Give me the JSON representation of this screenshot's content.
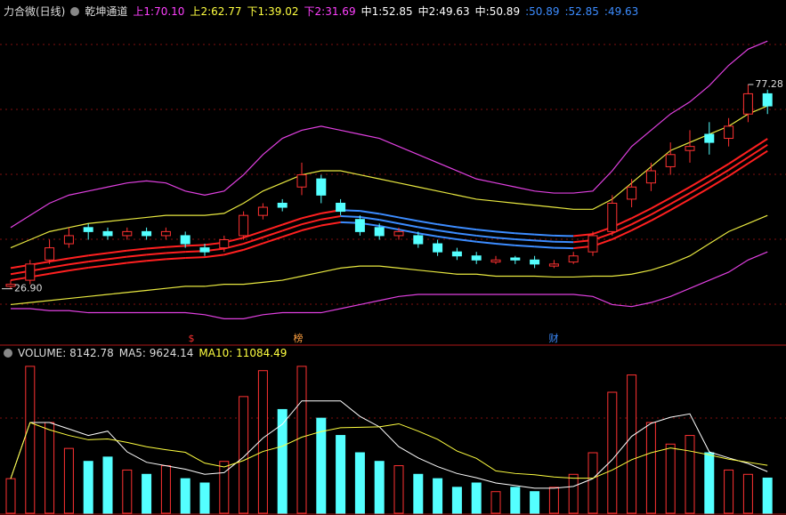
{
  "header": {
    "title": "力合微(日线)",
    "indicator": "乾坤通道",
    "items": [
      {
        "name": "上1:",
        "text": "70.10",
        "color": "#ff40ff"
      },
      {
        "name": "上2:",
        "text": "62.77",
        "color": "#ffff40"
      },
      {
        "name": "下1:",
        "text": "39.02",
        "color": "#ffff40"
      },
      {
        "name": "下2:",
        "text": "31.69",
        "color": "#ff40ff"
      },
      {
        "name": "中1:",
        "text": "52.85",
        "color": "#ffffff"
      },
      {
        "name": "中2:",
        "text": "49.63",
        "color": "#ffffff"
      },
      {
        "name": "中:",
        "text": "50.89",
        "color": "#ffffff"
      },
      {
        "name": ":",
        "text": "50.89",
        "color": "#3c8cff"
      },
      {
        "name": ":",
        "text": "52.85",
        "color": "#3c8cff"
      },
      {
        "name": ":",
        "text": "49.63",
        "color": "#3c8cff"
      }
    ]
  },
  "chart_data": [
    {
      "type": "candlestick",
      "ylim": [
        13,
        93.3
      ],
      "up_color": "#ff3232",
      "down_color": "#54ffff",
      "open": [
        27.5,
        29,
        34,
        38,
        42,
        41,
        40,
        41,
        40,
        40,
        37,
        37,
        40,
        45,
        48,
        52,
        54,
        48,
        44,
        42,
        40,
        40,
        38,
        36,
        35,
        33.5,
        34.5,
        34,
        32.5,
        33.5,
        36,
        41,
        49,
        53,
        57,
        61,
        65,
        64,
        70,
        75
      ],
      "high": [
        29,
        34,
        39,
        42,
        43,
        42,
        42,
        42,
        42,
        41,
        38,
        40,
        46,
        48,
        49,
        58,
        55,
        49,
        45,
        43,
        42,
        41,
        39,
        37,
        36,
        35,
        35,
        35,
        34,
        36,
        41,
        50,
        54,
        58,
        63,
        66,
        68,
        69,
        77.28,
        76
      ],
      "low": [
        26.9,
        28,
        33,
        37,
        39,
        39,
        39,
        39,
        39,
        37,
        35,
        36,
        39,
        44,
        46,
        50,
        48,
        45,
        40,
        39,
        39,
        37,
        35,
        34,
        33,
        33,
        33,
        32,
        32,
        33,
        35,
        40,
        47,
        51,
        55,
        58,
        60,
        62,
        68,
        70
      ],
      "close": [
        28,
        33,
        37,
        40,
        41,
        40,
        41,
        40,
        41,
        38,
        36,
        39,
        45,
        47,
        47,
        55,
        50,
        46,
        41,
        40,
        41,
        38,
        36,
        35,
        34,
        34,
        34,
        33,
        33,
        35,
        40,
        48,
        52,
        56,
        60,
        62,
        63,
        67,
        75,
        72
      ],
      "lines": [
        {
          "color": "#e040e0",
          "values": [
            42,
            45,
            48,
            50,
            51,
            52,
            53,
            53.5,
            53,
            51,
            50,
            51,
            55,
            60,
            64,
            66,
            67,
            66,
            65,
            64,
            62,
            60,
            58,
            56,
            54,
            53,
            52,
            51,
            50.5,
            50.5,
            51,
            56,
            62,
            66,
            70,
            73,
            77,
            82,
            86,
            88
          ]
        },
        {
          "color": "#e8e840",
          "values": [
            37,
            39,
            41,
            42,
            43,
            43.5,
            44,
            44.5,
            45,
            45,
            45,
            45.5,
            48,
            51,
            53,
            55,
            56,
            56,
            55,
            54,
            53,
            52,
            51,
            50,
            49,
            48.5,
            48,
            47.5,
            47,
            46.5,
            46.5,
            49,
            53,
            57,
            61,
            63,
            65,
            67,
            70,
            72
          ]
        },
        {
          "slope_colors": [
            "#ff2020",
            "#3c8cff"
          ],
          "values": [
            32,
            32.8,
            33.6,
            34.4,
            35.1,
            35.7,
            36.3,
            36.8,
            37.2,
            37.5,
            37.7,
            38.3,
            39.5,
            41.1,
            42.7,
            44.3,
            45.5,
            46.3,
            46.1,
            45.4,
            44.5,
            43.6,
            42.8,
            42.1,
            41.5,
            41,
            40.6,
            40.3,
            40,
            39.9,
            40.4,
            42.1,
            44.3,
            46.7,
            49.3,
            52,
            54.8,
            57.7,
            60.8,
            63.9
          ]
        },
        {
          "slope_colors": [
            "#ff2020",
            "#3c8cff"
          ],
          "values": [
            30.5,
            31.3,
            32.1,
            32.9,
            33.6,
            34.2,
            34.8,
            35.3,
            35.7,
            36,
            36.2,
            36.8,
            38,
            39.6,
            41.2,
            42.8,
            44,
            44.8,
            44.6,
            43.9,
            43,
            42.1,
            41.3,
            40.6,
            40,
            39.5,
            39.1,
            38.8,
            38.5,
            38.4,
            38.9,
            40.6,
            42.8,
            45.2,
            47.8,
            50.5,
            53.3,
            56.2,
            59.3,
            62.4
          ]
        },
        {
          "slope_colors": [
            "#ff2020",
            "#3c8cff"
          ],
          "values": [
            29,
            29.8,
            30.6,
            31.4,
            32.1,
            32.7,
            33.3,
            33.8,
            34.2,
            34.5,
            34.7,
            35.3,
            36.5,
            38.1,
            39.7,
            41.3,
            42.5,
            43.3,
            43.1,
            42.4,
            41.5,
            40.6,
            39.8,
            39.1,
            38.5,
            38,
            37.6,
            37.3,
            37,
            36.9,
            37.4,
            39.1,
            41.3,
            43.7,
            46.3,
            49,
            51.8,
            54.7,
            57.8,
            60.9
          ]
        },
        {
          "color": "#e8e840",
          "values": [
            23,
            23.5,
            24,
            24.5,
            25,
            25.5,
            26,
            26.5,
            27,
            27.5,
            27.5,
            28,
            28,
            28.5,
            29,
            30,
            31,
            32,
            32.5,
            32.5,
            32,
            31.5,
            31,
            30.5,
            30.5,
            30,
            30,
            30,
            29.8,
            29.8,
            30,
            30,
            30.5,
            31.5,
            33,
            35,
            38,
            41,
            43,
            45
          ]
        },
        {
          "color": "#e040e0",
          "values": [
            22,
            22,
            21.5,
            21.5,
            21,
            21,
            21,
            21,
            21,
            21,
            20.5,
            19.5,
            19.5,
            20.5,
            21,
            21,
            21,
            22,
            23,
            24,
            25,
            25.5,
            25.5,
            25.5,
            25.5,
            25.5,
            25.5,
            25.5,
            25.5,
            25.5,
            25,
            23,
            22.5,
            23.5,
            25,
            27,
            29,
            31,
            34,
            36
          ]
        }
      ],
      "annotations": [
        {
          "text": "77.28",
          "value": 77.28
        },
        {
          "text": "26.90",
          "value": 26.9
        }
      ],
      "markers": [
        {
          "text": "$",
          "color": "#ff3232"
        },
        {
          "text": "榜",
          "color": "#ffa040"
        },
        {
          "text": "财",
          "color": "#3c8cff"
        }
      ]
    },
    {
      "type": "bar",
      "ylim": [
        0,
        35000
      ],
      "legend": [
        {
          "text": "VOLUME: 8142.78",
          "color": "#dddddd"
        },
        {
          "text": "MA5: 9624.14",
          "color": "#dddddd"
        },
        {
          "text": "MA10: 11084.49",
          "color": "#ffff40"
        }
      ],
      "values": [
        8000,
        34000,
        21000,
        15000,
        12000,
        13000,
        10000,
        9000,
        11000,
        8000,
        7000,
        12000,
        27000,
        33000,
        24000,
        34000,
        22000,
        18000,
        14000,
        12000,
        11000,
        9000,
        8000,
        6000,
        7000,
        5000,
        6000,
        5000,
        6000,
        9000,
        14000,
        28000,
        32000,
        21000,
        16000,
        18000,
        14000,
        10000,
        9000,
        8142.78
      ],
      "lines": [
        {
          "color": "#ffffff",
          "values": [
            8000,
            21000,
            21000,
            19500,
            18000,
            19000,
            14200,
            11800,
            11000,
            10200,
            9000,
            9400,
            13000,
            17400,
            20600,
            26000,
            26000,
            26000,
            22400,
            20000,
            15400,
            12800,
            10800,
            9200,
            8200,
            7000,
            6400,
            5800,
            5800,
            6200,
            8000,
            12400,
            17800,
            20800,
            22200,
            23000,
            14200,
            12800,
            11500,
            9624.14
          ]
        },
        {
          "color": "#ffff40",
          "values": [
            8000,
            21000,
            19300,
            18000,
            17000,
            17200,
            16400,
            15400,
            14700,
            14100,
            11600,
            10700,
            12200,
            14300,
            15500,
            17600,
            18900,
            19800,
            19900,
            20000,
            20700,
            19000,
            17100,
            14400,
            12700,
            9800,
            9200,
            8900,
            8400,
            8100,
            8100,
            10000,
            12400,
            14000,
            15100,
            14400,
            13500,
            12500,
            11800,
            11084.49
          ]
        }
      ]
    }
  ]
}
